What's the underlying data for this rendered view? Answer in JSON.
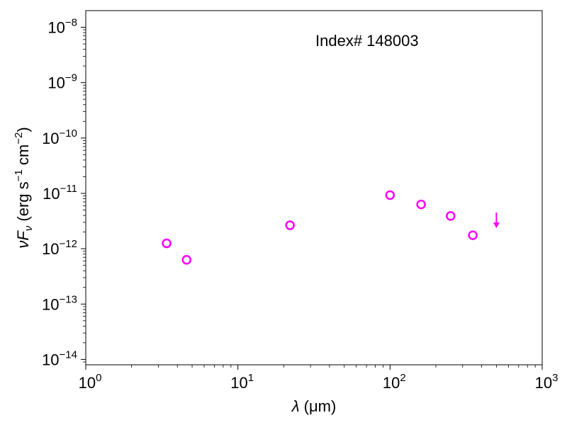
{
  "chart_data": {
    "type": "scatter",
    "title": "",
    "annotation": "Index# 148003",
    "xlabel": {
      "symbol": "λ",
      "unit": "(μm)"
    },
    "ylabel": {
      "symbol": "νF",
      "subscript": "ν",
      "unit_prefix": "(erg s",
      "unit_mid": " cm",
      "unit_suffix": ")",
      "exp1": "−1",
      "exp2": "−2"
    },
    "x_scale": "log",
    "y_scale": "log",
    "xlim": [
      1,
      1000
    ],
    "ylim": [
      8e-15,
      2e-08
    ],
    "x_ticks": [
      {
        "value": 1,
        "base": "10",
        "exp": "0"
      },
      {
        "value": 10,
        "base": "10",
        "exp": "1"
      },
      {
        "value": 100,
        "base": "10",
        "exp": "2"
      },
      {
        "value": 1000,
        "base": "10",
        "exp": "3"
      }
    ],
    "y_ticks": [
      {
        "value": 1e-14,
        "base": "10",
        "exp": "−14"
      },
      {
        "value": 1e-13,
        "base": "10",
        "exp": "−13"
      },
      {
        "value": 1e-12,
        "base": "10",
        "exp": "−12"
      },
      {
        "value": 1e-11,
        "base": "10",
        "exp": "−11"
      },
      {
        "value": 1e-10,
        "base": "10",
        "exp": "−10"
      },
      {
        "value": 1e-09,
        "base": "10",
        "exp": "−9"
      },
      {
        "value": 1e-08,
        "base": "10",
        "exp": "−8"
      }
    ],
    "grid": false,
    "marker_color": "#ff00ff",
    "series": [
      {
        "marker": "open-circle",
        "points": [
          {
            "x": 3.4,
            "y": 1.25e-12
          },
          {
            "x": 4.6,
            "y": 6.3e-13
          },
          {
            "x": 22,
            "y": 2.65e-12
          },
          {
            "x": 100,
            "y": 9.3e-12
          },
          {
            "x": 160,
            "y": 6.3e-12
          },
          {
            "x": 250,
            "y": 3.9e-12
          },
          {
            "x": 350,
            "y": 1.75e-12
          }
        ]
      },
      {
        "marker": "upper-limit-arrow",
        "points": [
          {
            "x": 500,
            "y": 4e-12
          }
        ]
      }
    ]
  }
}
